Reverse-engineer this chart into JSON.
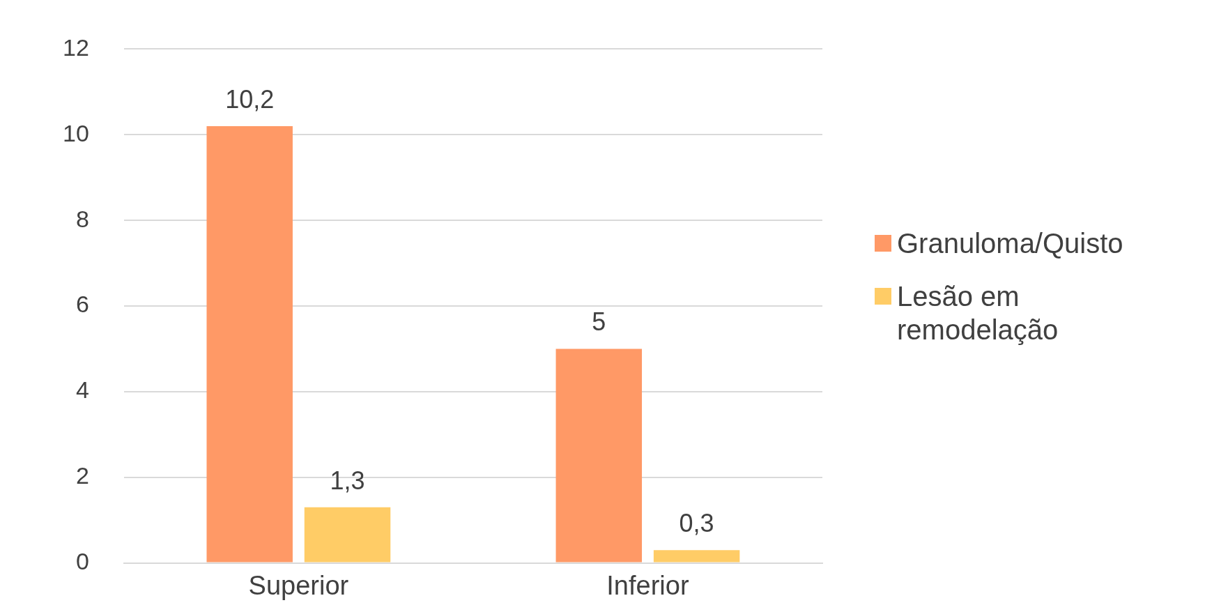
{
  "chart_data": {
    "type": "bar",
    "categories": [
      "Superior",
      "Inferior"
    ],
    "series": [
      {
        "name": "Granuloma/Quisto",
        "color": "#ff9966",
        "values": [
          10.2,
          5
        ],
        "value_labels": [
          "10,2",
          "5"
        ]
      },
      {
        "name": "Lesão em remodelação",
        "color": "#ffcc66",
        "values": [
          1.3,
          0.3
        ],
        "value_labels": [
          "1,3",
          "0,3"
        ]
      }
    ],
    "ylim": [
      0,
      12
    ],
    "yticks": [
      0,
      2,
      4,
      6,
      8,
      10,
      12
    ],
    "grid": "y",
    "legend": "right"
  }
}
